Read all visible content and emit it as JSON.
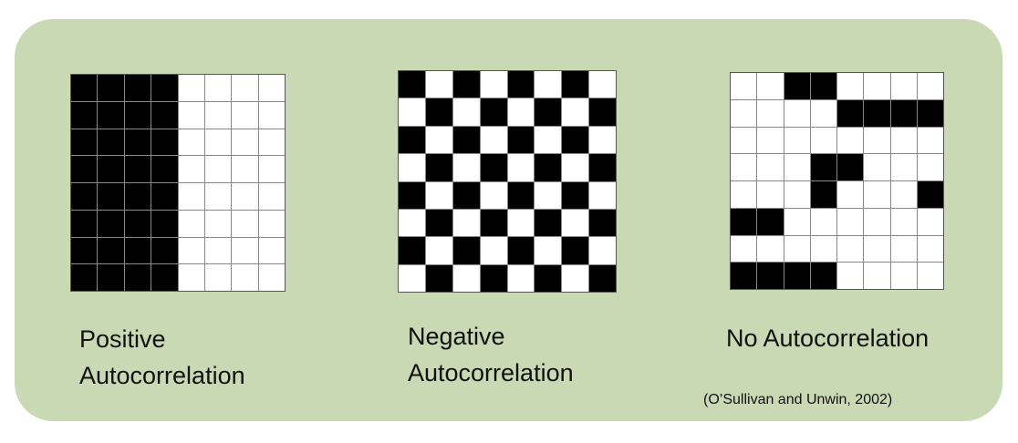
{
  "panels": [
    {
      "id": "positive",
      "label_line1": "Positive",
      "label_line2": "Autocorrelation",
      "grid": [
        [
          1,
          1,
          1,
          1,
          0,
          0,
          0,
          0
        ],
        [
          1,
          1,
          1,
          1,
          0,
          0,
          0,
          0
        ],
        [
          1,
          1,
          1,
          1,
          0,
          0,
          0,
          0
        ],
        [
          1,
          1,
          1,
          1,
          0,
          0,
          0,
          0
        ],
        [
          1,
          1,
          1,
          1,
          0,
          0,
          0,
          0
        ],
        [
          1,
          1,
          1,
          1,
          0,
          0,
          0,
          0
        ],
        [
          1,
          1,
          1,
          1,
          0,
          0,
          0,
          0
        ],
        [
          1,
          1,
          1,
          1,
          0,
          0,
          0,
          0
        ]
      ]
    },
    {
      "id": "negative",
      "label_line1": "Negative",
      "label_line2": "Autocorrelation",
      "grid": [
        [
          1,
          0,
          1,
          0,
          1,
          0,
          1,
          0
        ],
        [
          0,
          1,
          0,
          1,
          0,
          1,
          0,
          1
        ],
        [
          1,
          0,
          1,
          0,
          1,
          0,
          1,
          0
        ],
        [
          0,
          1,
          0,
          1,
          0,
          1,
          0,
          1
        ],
        [
          1,
          0,
          1,
          0,
          1,
          0,
          1,
          0
        ],
        [
          0,
          1,
          0,
          1,
          0,
          1,
          0,
          1
        ],
        [
          1,
          0,
          1,
          0,
          1,
          0,
          1,
          0
        ],
        [
          0,
          1,
          0,
          1,
          0,
          1,
          0,
          1
        ]
      ]
    },
    {
      "id": "random",
      "label_line1": "No Autocorrelation",
      "label_line2": "",
      "grid": [
        [
          0,
          0,
          1,
          1,
          0,
          0,
          0,
          0
        ],
        [
          0,
          0,
          0,
          0,
          1,
          1,
          1,
          1
        ],
        [
          0,
          0,
          0,
          0,
          0,
          0,
          0,
          0
        ],
        [
          0,
          0,
          0,
          1,
          1,
          0,
          0,
          0
        ],
        [
          0,
          0,
          0,
          1,
          0,
          0,
          0,
          1
        ],
        [
          1,
          1,
          0,
          0,
          0,
          0,
          0,
          0
        ],
        [
          0,
          0,
          0,
          0,
          0,
          0,
          0,
          0
        ],
        [
          1,
          1,
          1,
          1,
          0,
          0,
          0,
          0
        ]
      ]
    }
  ],
  "citation": "(O’Sullivan and Unwin, 2002)",
  "colors": {
    "background_panel": "#c8d9b4",
    "cell_filled": "#000000",
    "cell_empty": "#ffffff"
  }
}
